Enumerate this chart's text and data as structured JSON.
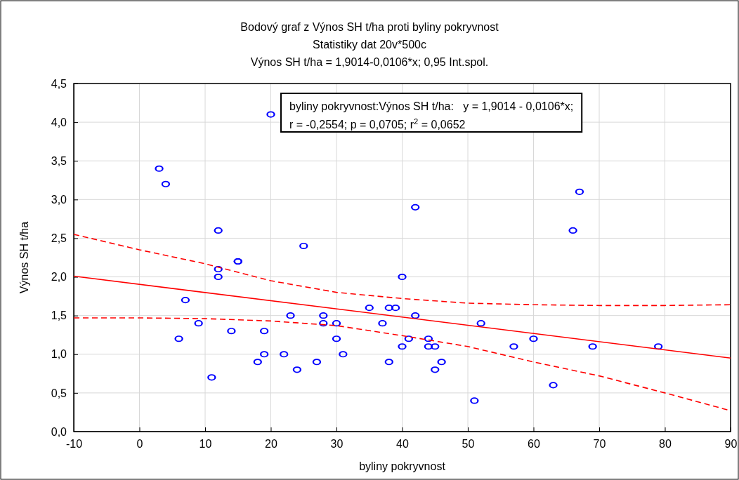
{
  "chart_data": {
    "type": "scatter",
    "title": "Bodový graf z Výnos SH t/ha proti byliny pokryvnost",
    "subtitle": "Statistiky dat 20v*500c\nVýnos SH t/ha = 1,9014-0,0106*x; 0,95 Int.spol.",
    "xlabel": "byliny pokryvnost",
    "ylabel": "Výnos SH t/ha",
    "annotations": [
      "byliny pokryvnost:Výnos SH t/ha:   y = 1,9014 - 0,0106*x;\nr = -0,2554; p = 0,0705; r$^{2}$ = 0,0652"
    ],
    "xlim": [
      -10,
      90
    ],
    "xticks": [
      -10,
      0,
      10,
      20,
      30,
      40,
      50,
      60,
      70,
      80,
      90
    ],
    "ylim": [
      0,
      4.5
    ],
    "yticks": [
      {
        "value": 0,
        "label": "0,0"
      },
      {
        "value": 0.5,
        "label": "0,5"
      },
      {
        "value": 1,
        "label": "1,0"
      },
      {
        "value": 1.5,
        "label": "1,5"
      },
      {
        "value": 2,
        "label": "2,0"
      },
      {
        "value": 2.5,
        "label": "2,5"
      },
      {
        "value": 3,
        "label": "3,0"
      },
      {
        "value": 3.5,
        "label": "3,5"
      },
      {
        "value": 4,
        "label": "4,0"
      },
      {
        "value": 4.5,
        "label": "4,5"
      }
    ],
    "grid": true,
    "series": [
      {
        "marker": "circle",
        "color": "#0000ff",
        "x": [
          3,
          4,
          20,
          12,
          25,
          15,
          15,
          12,
          12,
          7,
          9,
          6,
          11,
          14,
          19,
          18,
          19,
          22,
          23,
          24,
          27,
          28,
          28,
          30,
          30,
          31,
          35,
          37,
          38,
          39,
          38,
          40,
          40,
          41,
          42,
          42,
          44,
          44,
          45,
          45,
          46,
          51,
          52,
          57,
          60,
          63,
          66,
          67,
          69,
          79
        ],
        "values": [
          3.4,
          3.2,
          4.1,
          2.6,
          2.4,
          2.2,
          2.2,
          2.1,
          2.0,
          1.7,
          1.4,
          1.2,
          0.7,
          1.3,
          1.3,
          0.9,
          1.0,
          1.0,
          1.5,
          0.8,
          0.9,
          1.5,
          1.4,
          1.4,
          1.2,
          1.0,
          1.6,
          1.4,
          1.6,
          1.6,
          0.9,
          2.0,
          1.1,
          1.2,
          2.9,
          1.5,
          1.2,
          1.1,
          1.1,
          0.8,
          0.9,
          0.4,
          1.4,
          1.1,
          1.2,
          0.6,
          2.6,
          3.1,
          1.1,
          1.1
        ]
      },
      {
        "type": "line",
        "color": "#ff0000",
        "line_style": "solid",
        "x": [
          -10,
          90
        ],
        "values": [
          2.01,
          0.95
        ]
      },
      {
        "type": "line",
        "color": "#ff0000",
        "line_style": "dashed",
        "x": [
          -10,
          0,
          10,
          20,
          30,
          40,
          50,
          60,
          70,
          80,
          90
        ],
        "values": [
          2.55,
          2.35,
          2.17,
          1.95,
          1.8,
          1.72,
          1.66,
          1.64,
          1.63,
          1.63,
          1.64
        ]
      },
      {
        "type": "line",
        "color": "#ff0000",
        "line_style": "dashed",
        "x": [
          -10,
          0,
          10,
          20,
          30,
          40,
          50,
          60,
          70,
          80,
          90
        ],
        "values": [
          1.47,
          1.47,
          1.46,
          1.43,
          1.37,
          1.24,
          1.1,
          0.9,
          0.72,
          0.5,
          0.27
        ]
      }
    ]
  }
}
